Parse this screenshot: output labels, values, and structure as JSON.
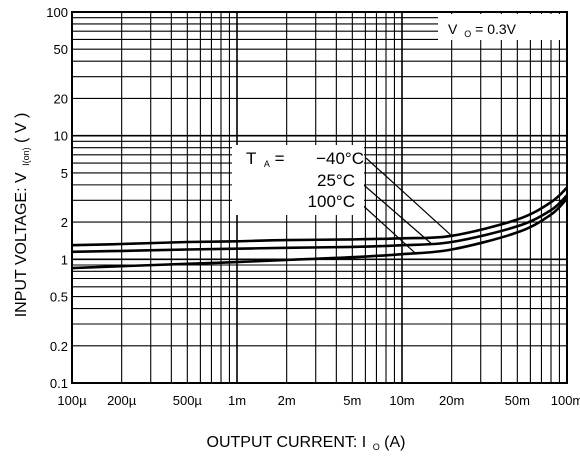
{
  "chart_data": {
    "type": "line",
    "title": "",
    "xlabel": {
      "main": "OUTPUT CURRENT: I",
      "sub": "O",
      "unit": " (A)"
    },
    "ylabel": {
      "main": "INPUT VOLTAGE: V",
      "sub": "I(on)",
      "unit": "  ( V )"
    },
    "x_scale": "log",
    "y_scale": "log",
    "xlim": [
      0.0001,
      0.1
    ],
    "ylim": [
      0.1,
      100
    ],
    "grid": true,
    "x_ticks": [
      {
        "value": 0.0001,
        "label": "100µ"
      },
      {
        "value": 0.0002,
        "label": "200µ"
      },
      {
        "value": 0.0005,
        "label": "500µ"
      },
      {
        "value": 0.001,
        "label": "1m"
      },
      {
        "value": 0.002,
        "label": "2m"
      },
      {
        "value": 0.005,
        "label": "5m"
      },
      {
        "value": 0.01,
        "label": "10m"
      },
      {
        "value": 0.02,
        "label": "20m"
      },
      {
        "value": 0.05,
        "label": "50m"
      },
      {
        "value": 0.1,
        "label": "100m"
      }
    ],
    "y_ticks": [
      {
        "value": 0.1,
        "label": "0.1"
      },
      {
        "value": 0.2,
        "label": "0.2"
      },
      {
        "value": 0.5,
        "label": "0.5"
      },
      {
        "value": 1,
        "label": "1"
      },
      {
        "value": 2,
        "label": "2"
      },
      {
        "value": 5,
        "label": "5"
      },
      {
        "value": 10,
        "label": "10"
      },
      {
        "value": 20,
        "label": "20"
      },
      {
        "value": 50,
        "label": "50"
      },
      {
        "value": 100,
        "label": "100"
      }
    ],
    "condition": {
      "main": "V",
      "sub": "O",
      "rest": " = 0.3V"
    },
    "series_label_prefix": {
      "main": "T",
      "sub": "A",
      "rest": " ="
    },
    "series": [
      {
        "name": "−40°C",
        "x": [
          0.0001,
          0.0002,
          0.0005,
          0.001,
          0.002,
          0.005,
          0.01,
          0.02,
          0.05,
          0.08,
          0.1
        ],
        "y": [
          1.3,
          1.33,
          1.38,
          1.4,
          1.43,
          1.45,
          1.48,
          1.55,
          2.1,
          2.9,
          3.8
        ]
      },
      {
        "name": "25°C",
        "x": [
          0.0001,
          0.0002,
          0.0005,
          0.001,
          0.002,
          0.005,
          0.01,
          0.02,
          0.05,
          0.08,
          0.1
        ],
        "y": [
          1.15,
          1.17,
          1.2,
          1.22,
          1.24,
          1.26,
          1.3,
          1.38,
          1.85,
          2.5,
          3.3
        ]
      },
      {
        "name": "100°C",
        "x": [
          0.0001,
          0.0002,
          0.0005,
          0.001,
          0.002,
          0.005,
          0.01,
          0.02,
          0.05,
          0.08,
          0.1
        ],
        "y": [
          0.85,
          0.88,
          0.92,
          0.95,
          0.99,
          1.04,
          1.1,
          1.2,
          1.65,
          2.3,
          3.1
        ]
      }
    ]
  }
}
